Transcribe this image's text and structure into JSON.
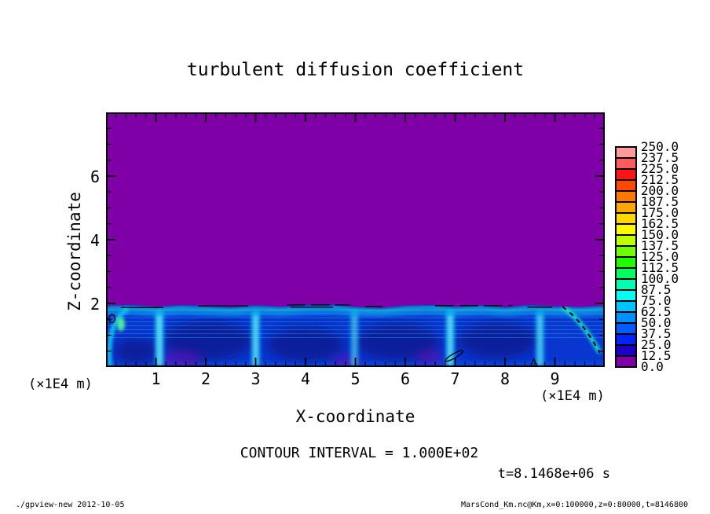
{
  "page": {
    "title": "turbulent diffusion coefficient",
    "x_axis_label": "X-coordinate",
    "y_axis_label": "Z-coordinate",
    "x_unit_label_left": "(×1E4 m)",
    "x_unit_label_right": "(×1E4 m)",
    "contour_note": "CONTOUR INTERVAL = 1.000E+02",
    "time_note": "t=8.1468e+06 s",
    "footer_left": "./gpview-new  2012-10-05",
    "footer_right": "MarsCond_Km.nc@Km,x=0:100000,z=0:80000,t=8146800"
  },
  "chart_data": {
    "type": "heatmap",
    "title": "turbulent diffusion coefficient",
    "xlabel": "X-coordinate",
    "ylabel": "Z-coordinate",
    "x_units": "×1E4 m",
    "y_units": "×1E4 m",
    "xlim": [
      0,
      10
    ],
    "ylim": [
      0,
      8
    ],
    "x_range_m": "x=0:100000",
    "z_range_m": "z=0:80000",
    "time_s": "t=8146800",
    "x_ticks": [
      "1",
      "2",
      "3",
      "4",
      "5",
      "6",
      "7",
      "8",
      "9"
    ],
    "x_tick_values": [
      1,
      2,
      3,
      4,
      5,
      6,
      7,
      8,
      9
    ],
    "x_minor_step": 0.2,
    "y_ticks": [
      "2",
      "4",
      "6"
    ],
    "y_tick_values": [
      2,
      4,
      6
    ],
    "y_minor_step": 0.5,
    "contour_interval": "1.000E+02",
    "colorbar": {
      "min": 0.0,
      "max": 250.0,
      "step": 12.5,
      "labels_top_to_bottom": [
        "250.0",
        "237.5",
        "225.0",
        "212.5",
        "200.0",
        "187.5",
        "175.0",
        "162.5",
        "150.0",
        "137.5",
        "125.0",
        "112.5",
        "100.0",
        "87.5",
        "75.0",
        "62.5",
        "50.0",
        "37.5",
        "25.0",
        "12.5",
        "0.0"
      ],
      "colors_top_to_bottom": [
        "#ff9b9b",
        "#ff5d5d",
        "#ff1414",
        "#ff4800",
        "#ff7800",
        "#ffa800",
        "#ffd800",
        "#fff800",
        "#c0ff00",
        "#70ff00",
        "#20ff00",
        "#00ff60",
        "#00ffb0",
        "#00fff4",
        "#00c4ff",
        "#0090ff",
        "#005cff",
        "#0024ff",
        "#1c00c8",
        "#7f00a6"
      ]
    },
    "approx_grid": {
      "note": "coarse estimate of plotted field; ≈0 everywhere above z≈1.9, turbulent 25–112 below",
      "x_centers": [
        0.5,
        1.5,
        2.5,
        3.5,
        4.5,
        5.5,
        6.5,
        7.5,
        8.5,
        9.5
      ],
      "z_levels": [
        7,
        6,
        5,
        4,
        3,
        2.5,
        2,
        1.6,
        1.2,
        0.8,
        0.4
      ],
      "values": [
        [
          0,
          0,
          0,
          0,
          0,
          0,
          0,
          0,
          0,
          0
        ],
        [
          0,
          0,
          0,
          0,
          0,
          0,
          0,
          0,
          0,
          0
        ],
        [
          0,
          0,
          0,
          0,
          0,
          0,
          0,
          0,
          0,
          0
        ],
        [
          0,
          0,
          0,
          0,
          0,
          0,
          0,
          0,
          0,
          0
        ],
        [
          0,
          0,
          0,
          0,
          0,
          0,
          0,
          0,
          0,
          0
        ],
        [
          0,
          0,
          0,
          0,
          0,
          0,
          0,
          0,
          0,
          0
        ],
        [
          0,
          0,
          0,
          0,
          0,
          0,
          0,
          0,
          0,
          0
        ],
        [
          87,
          100,
          75,
          87,
          100,
          87,
          100,
          87,
          112,
          100
        ],
        [
          62,
          37,
          50,
          37,
          62,
          37,
          50,
          37,
          75,
          62
        ],
        [
          50,
          25,
          62,
          25,
          50,
          25,
          62,
          37,
          62,
          50
        ],
        [
          62,
          37,
          75,
          50,
          62,
          50,
          75,
          37,
          87,
          62
        ]
      ]
    },
    "features": {
      "purple_color": "#7f00a6",
      "bl_base_color": "#0936cf",
      "bl_core_color": "#0a1c96",
      "bl_plume_color": "#18cff0",
      "bl_plume_core_color": "#a8f6ff",
      "bl_crest_color": "#1fe9cf",
      "bl_crest_glow_color": "#0fb4ff",
      "bl_crest_green_color": "#59ff9e",
      "bottom_wash_color": "#0e52e6",
      "boundary_z": [
        1.93,
        1.96,
        1.9,
        1.95,
        1.92,
        1.88,
        1.94,
        1.9,
        1.95,
        1.97,
        1.9,
        1.86,
        1.93,
        1.96,
        1.9,
        1.94,
        1.88,
        1.95,
        1.91,
        1.89,
        1.93
      ],
      "plumes": [
        [
          1.07,
          1.0
        ],
        [
          3.0,
          0.9
        ],
        [
          4.98,
          0.6
        ],
        [
          6.9,
          0.95
        ],
        [
          8.7,
          0.8
        ]
      ],
      "cores": [
        [
          2.05,
          0.85,
          0.9,
          0.62
        ],
        [
          4.0,
          0.72,
          0.78,
          0.55
        ],
        [
          5.85,
          0.8,
          0.85,
          0.6
        ],
        [
          7.85,
          0.85,
          0.8,
          0.58
        ],
        [
          0.6,
          0.5,
          0.45,
          0.4
        ]
      ],
      "purple_patches": [
        [
          1.5,
          0.22,
          0.42,
          0.3
        ],
        [
          4.82,
          0.16,
          0.3,
          0.24
        ],
        [
          6.48,
          0.3,
          0.28,
          0.24
        ]
      ],
      "left_arc": [
        [
          0.08,
          0.0
        ],
        [
          0.02,
          0.9
        ],
        [
          0.15,
          1.6
        ],
        [
          0.45,
          1.83
        ]
      ],
      "green_spot": [
        0.3,
        1.35
      ],
      "diagonal_streak": [
        [
          9.15,
          1.9
        ],
        [
          9.5,
          1.5
        ],
        [
          9.7,
          1.0
        ],
        [
          9.9,
          0.45
        ]
      ],
      "contour_segments": [
        [
          0.3,
          1.87,
          1.15,
          1.87,
          0
        ],
        [
          1.85,
          1.92,
          2.85,
          1.92,
          0
        ],
        [
          3.62,
          1.95,
          4.9,
          1.95,
          1
        ],
        [
          3.7,
          1.88,
          4.55,
          1.88,
          0
        ],
        [
          5.2,
          1.9,
          5.55,
          1.9,
          0
        ],
        [
          6.6,
          1.93,
          8.15,
          1.93,
          1
        ],
        [
          8.45,
          1.88,
          8.95,
          1.88,
          0
        ]
      ],
      "contour_loops": [
        [
          0.12,
          1.52,
          0.06,
          0.13,
          0
        ],
        [
          6.98,
          0.35,
          0.2,
          0.07,
          -30
        ]
      ],
      "caret": [
        [
          8.5,
          0.0
        ],
        [
          8.58,
          0.25
        ],
        [
          8.66,
          0.0
        ]
      ]
    }
  }
}
